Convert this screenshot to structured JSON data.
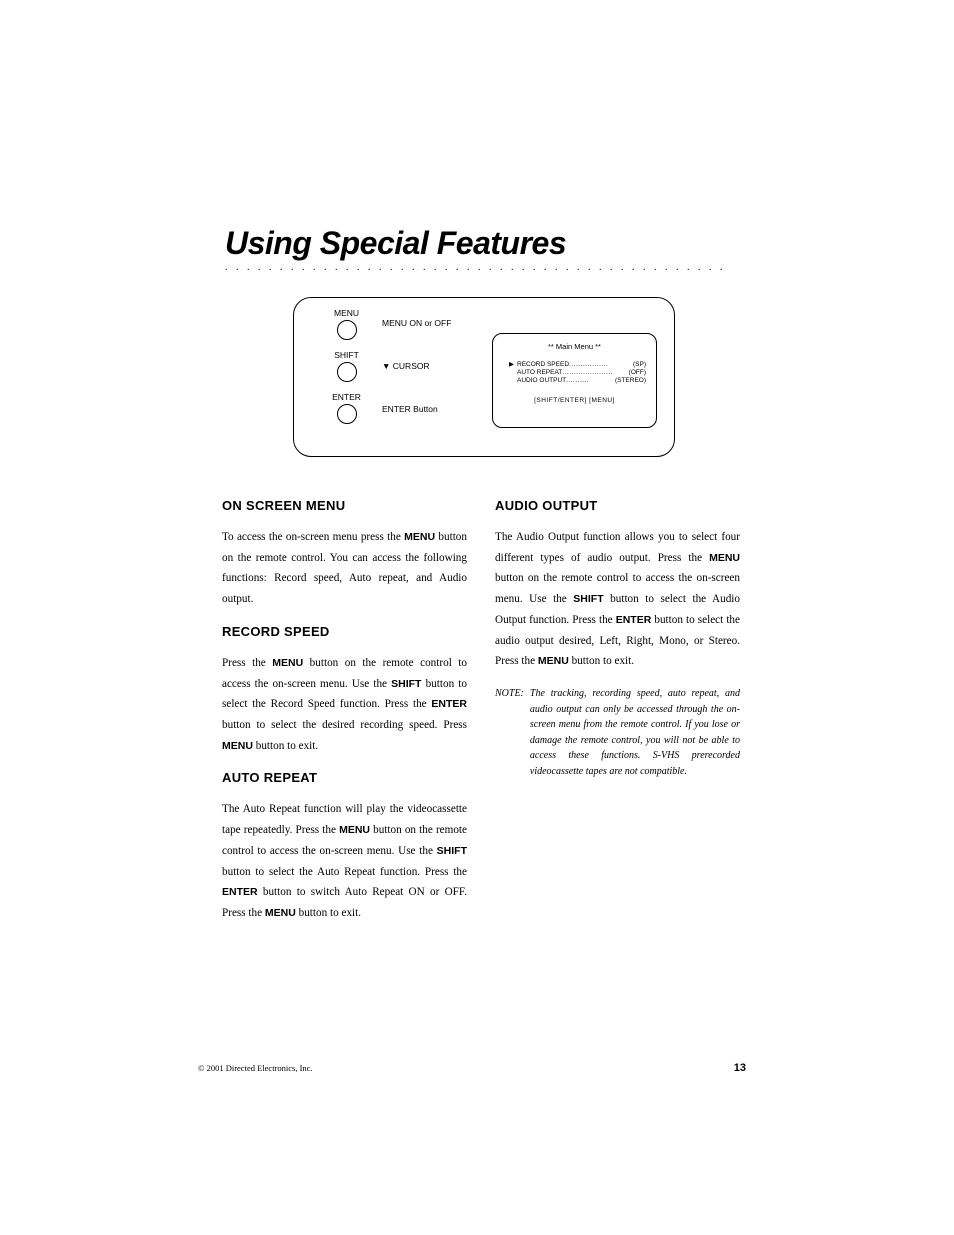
{
  "title": "Using Special Features",
  "diagram": {
    "buttons": [
      {
        "label": "MENU",
        "desc": "MENU ON or OFF"
      },
      {
        "label": "SHIFT",
        "desc": "▼ CURSOR"
      },
      {
        "label": "ENTER",
        "desc": "ENTER Button"
      }
    ],
    "screen": {
      "title": "** Main Menu **",
      "rows": [
        {
          "marker": "▶",
          "label": "RECORD SPEED",
          "value": "(SP)"
        },
        {
          "marker": "",
          "label": "AUTO REPEAT",
          "value": "(OFF)"
        },
        {
          "marker": "",
          "label": "AUDIO OUTPUT",
          "value": "(STEREO)"
        }
      ],
      "footer": "[SHIFT/ENTER]   [MENU]"
    }
  },
  "left_col": {
    "sec1": {
      "heading": "ON SCREEN MENU",
      "p1a": "To access the on-screen menu press the ",
      "p1b": "MENU",
      "p1c": " button on the remote control. You can access the following functions: Record speed, Auto repeat, and Audio output."
    },
    "sec2": {
      "heading": "RECORD SPEED",
      "p1a": "Press the ",
      "p1b": "MENU",
      "p1c": " button on the remote control to access the on-screen menu. Use the ",
      "p1d": "SHIFT",
      "p1e": " button to select the Record Speed function. Press the ",
      "p1f": "ENTER",
      "p1g": " button to select the desired recording speed. Press ",
      "p1h": "MENU",
      "p1i": " button to exit."
    },
    "sec3": {
      "heading": "AUTO REPEAT",
      "p1a": "The Auto Repeat function will play the videocassette tape repeatedly. Press the ",
      "p1b": "MENU",
      "p1c": " button on the remote control to access the on-screen menu. Use the ",
      "p1d": "SHIFT",
      "p1e": " button to select the Auto Repeat function. Press the ",
      "p1f": "ENTER",
      "p1g": " button to switch Auto Repeat ON or OFF. Press the ",
      "p1h": "MENU",
      "p1i": " button to exit."
    }
  },
  "right_col": {
    "sec1": {
      "heading": "AUDIO OUTPUT",
      "p1a": "The Audio Output function allows you to select four different types of audio output. Press the ",
      "p1b": "MENU",
      "p1c": " button on the remote control to access the on-screen menu. Use the ",
      "p1d": "SHIFT",
      "p1e": " button to select the Audio Output function. Press the ",
      "p1f": "ENTER",
      "p1g": " button to select the audio output desired, Left, Right, Mono, or Stereo. Press the ",
      "p1h": "MENU",
      "p1i": " button to exit."
    },
    "note": {
      "label": "NOTE:",
      "text": "The tracking, recording speed, auto repeat, and audio output can only be accessed through the on- screen menu from the remote control. If you lose or damage the remote control, you will not be able to access these functions. S-VHS prerecorded videocassette tapes are not compatible."
    }
  },
  "footer": {
    "copyright": "© 2001 Directed Electronics, Inc.",
    "page": "13"
  },
  "style": {
    "title_fontsize": 32,
    "heading_fontsize": 13,
    "body_fontsize": 11.2,
    "note_fontsize": 10,
    "page_bg": "#ffffff",
    "text_color": "#000000"
  }
}
